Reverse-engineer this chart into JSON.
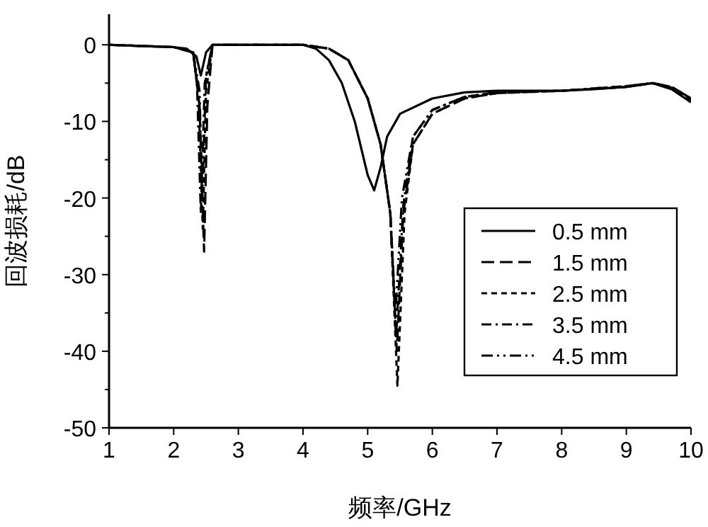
{
  "chart_data": {
    "type": "line",
    "xlabel": "频率/GHz",
    "ylabel": "回波损耗/dB",
    "xlim": [
      1,
      10
    ],
    "xticks": [
      1,
      2,
      3,
      4,
      5,
      6,
      7,
      8,
      9,
      10
    ],
    "ylim": [
      -50,
      4
    ],
    "yticks": [
      {
        "value": -50,
        "label": "-50"
      },
      {
        "value": -45,
        "label": null
      },
      {
        "value": -40,
        "label": "-40"
      },
      {
        "value": -35,
        "label": null
      },
      {
        "value": -30,
        "label": "-30"
      },
      {
        "value": -25,
        "label": null
      },
      {
        "value": -20,
        "label": "-20"
      },
      {
        "value": -15,
        "label": null
      },
      {
        "value": -10,
        "label": "-10"
      },
      {
        "value": -5,
        "label": null
      },
      {
        "value": 0,
        "label": "0"
      }
    ],
    "grid": false,
    "legend": "right",
    "series": [
      {
        "name": "0.5 mm",
        "color": "#000000",
        "line_style": "solid",
        "x": [
          1,
          2,
          2.2,
          2.35,
          2.42,
          2.5,
          2.6,
          3,
          3.5,
          4,
          4.2,
          4.4,
          4.6,
          4.8,
          5.0,
          5.1,
          5.2,
          5.3,
          5.5,
          6,
          6.5,
          7,
          8,
          8.5,
          9,
          9.4,
          9.7,
          10
        ],
        "values": [
          0,
          -0.3,
          -0.5,
          -1.5,
          -4,
          -1,
          0,
          0,
          0,
          0,
          -0.5,
          -2,
          -5,
          -10,
          -17,
          -19,
          -16,
          -12,
          -9,
          -7,
          -6.2,
          -6,
          -6,
          -5.8,
          -5.5,
          -5,
          -5.8,
          -7.5
        ]
      },
      {
        "name": "1.5 mm",
        "color": "#000000",
        "line_style": "dashed",
        "x": [
          1,
          2,
          2.3,
          2.4,
          2.47,
          2.52,
          2.6,
          3,
          4,
          4.4,
          4.7,
          5.0,
          5.2,
          5.35,
          5.45,
          5.55,
          5.7,
          6,
          6.5,
          7,
          8,
          9,
          9.4,
          9.7,
          10
        ],
        "values": [
          0,
          -0.3,
          -1,
          -8,
          -27,
          -8,
          0,
          0,
          0,
          -0.5,
          -2,
          -7,
          -13,
          -22,
          -40,
          -22,
          -13,
          -9,
          -7,
          -6.3,
          -6,
          -5.5,
          -5,
          -5.5,
          -7
        ]
      },
      {
        "name": "2.5 mm",
        "color": "#000000",
        "line_style": "dotted",
        "x": [
          1,
          2,
          2.3,
          2.38,
          2.45,
          2.5,
          2.6,
          3,
          4,
          4.4,
          4.7,
          5.0,
          5.2,
          5.35,
          5.46,
          5.57,
          5.7,
          6,
          6.5,
          7,
          8,
          9,
          9.4,
          9.7,
          10
        ],
        "values": [
          0,
          -0.3,
          -1,
          -6,
          -24,
          -6,
          0,
          0,
          0,
          -0.5,
          -2,
          -7,
          -13,
          -22,
          -44.5,
          -22,
          -13,
          -9,
          -7,
          -6.3,
          -6,
          -5.5,
          -5,
          -5.6,
          -7.2
        ]
      },
      {
        "name": "3.5 mm",
        "color": "#000000",
        "line_style": "dashdot",
        "x": [
          1,
          2,
          2.3,
          2.36,
          2.42,
          2.48,
          2.6,
          3,
          4,
          4.4,
          4.7,
          5.0,
          5.2,
          5.35,
          5.44,
          5.55,
          5.7,
          6,
          6.5,
          7,
          8,
          9,
          9.4,
          9.7,
          10
        ],
        "values": [
          0,
          -0.3,
          -1,
          -5,
          -22,
          -5,
          0,
          0,
          0,
          -0.5,
          -2,
          -7,
          -13,
          -22,
          -38,
          -21,
          -12,
          -8.5,
          -6.8,
          -6.2,
          -6,
          -5.4,
          -5,
          -5.5,
          -7
        ]
      },
      {
        "name": "4.5 mm",
        "color": "#000000",
        "line_style": "dashdotdot",
        "x": [
          1,
          2,
          2.3,
          2.4,
          2.44,
          2.5,
          2.6,
          3,
          4,
          4.4,
          4.7,
          5.0,
          5.2,
          5.35,
          5.43,
          5.53,
          5.7,
          6,
          6.5,
          7,
          8,
          9,
          9.4,
          9.7,
          10
        ],
        "values": [
          0,
          -0.3,
          -1,
          -6,
          -20,
          -4,
          0,
          0,
          0,
          -0.5,
          -2,
          -7,
          -13,
          -22,
          -35,
          -20,
          -12,
          -8.5,
          -6.8,
          -6.2,
          -6,
          -5.4,
          -5,
          -5.5,
          -7
        ]
      }
    ]
  }
}
